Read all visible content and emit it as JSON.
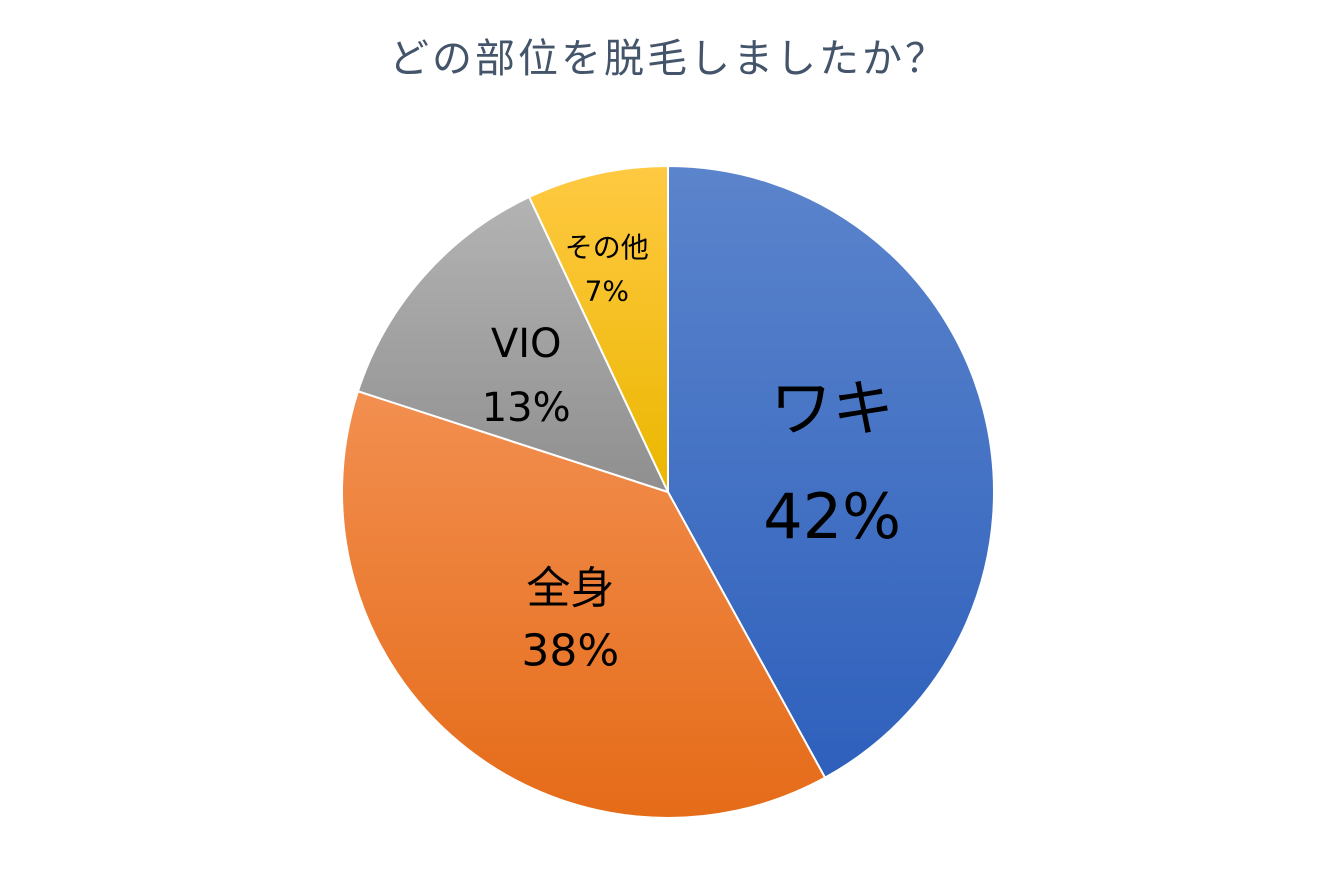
{
  "chart_data": {
    "type": "pie",
    "title": "どの部位を脱毛しましたか？",
    "start_angle_deg": 0,
    "direction": "clockwise",
    "slices": [
      {
        "label": "ワキ",
        "value": 42,
        "percent_label": "42%",
        "color_top": "#5b84cc",
        "color_bottom": "#2e60bc"
      },
      {
        "label": "全身",
        "value": 38,
        "percent_label": "38%",
        "color_top": "#f28f50",
        "color_bottom": "#e56b18"
      },
      {
        "label": "VIO",
        "value": 13,
        "percent_label": "13%",
        "color_top": "#b3b3b3",
        "color_bottom": "#8f8f8f"
      },
      {
        "label": "その他",
        "value": 7,
        "percent_label": "7%",
        "color_top": "#ffc942",
        "color_bottom": "#eab700"
      }
    ]
  }
}
